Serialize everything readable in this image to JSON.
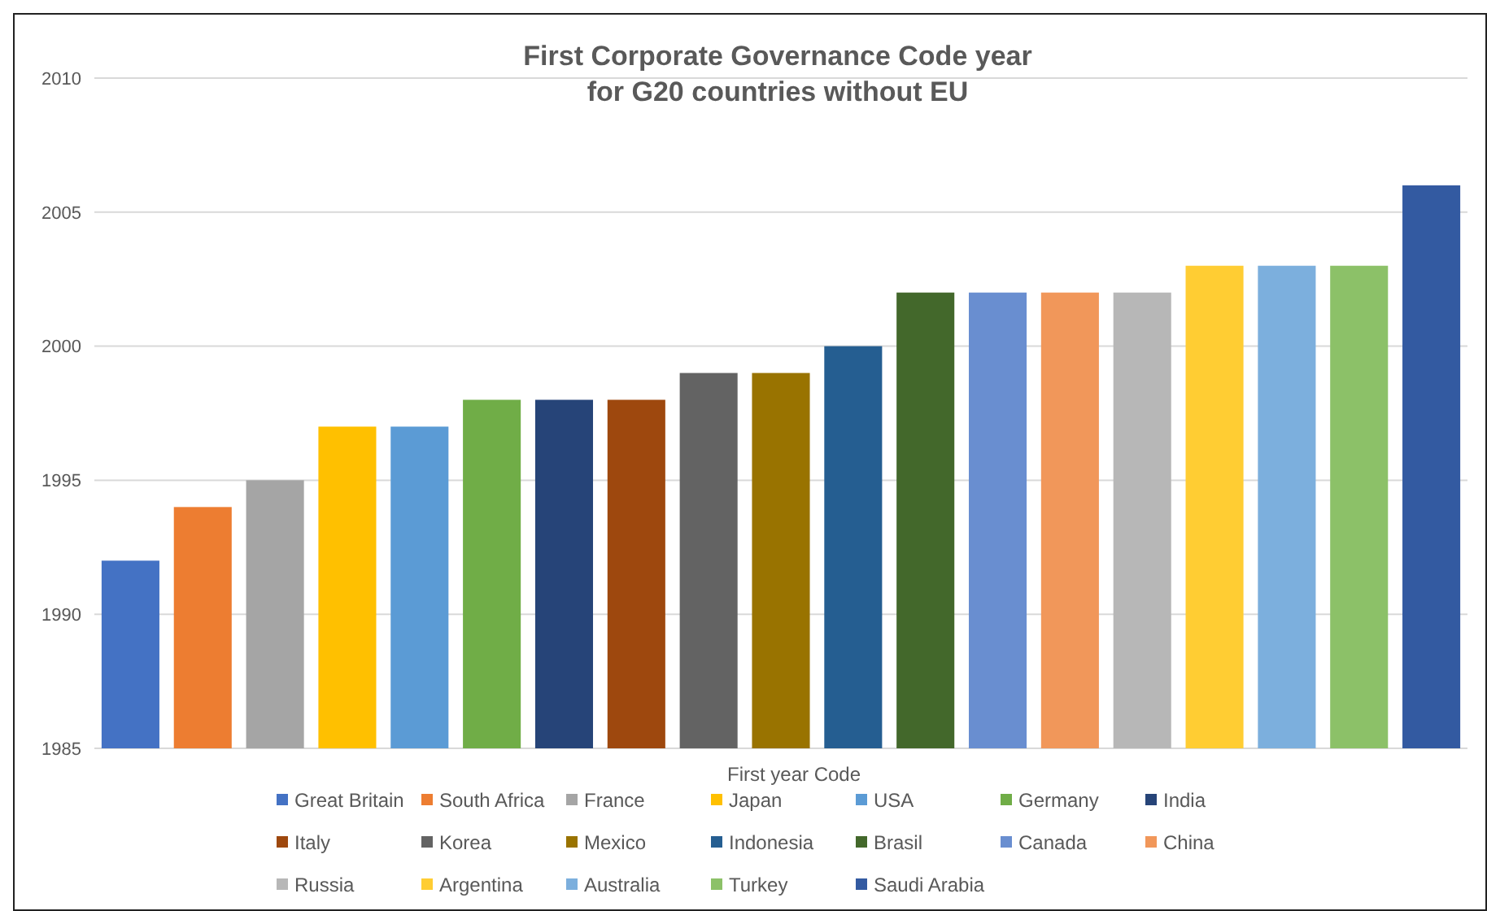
{
  "chart_data": {
    "type": "bar",
    "title": "First Corporate Governance Code year\nfor G20 countries without EU",
    "legend_title": "First year Code",
    "categories": [
      null,
      null,
      null,
      null,
      null,
      null,
      null,
      null,
      null,
      null,
      null,
      null,
      null,
      null,
      null,
      null,
      null,
      null,
      null
    ],
    "ylim": [
      1985,
      2010
    ],
    "yticks": [
      1985,
      1990,
      1995,
      2000,
      2005,
      2010
    ],
    "grid": "y",
    "legend": "bottom",
    "tick_labels": "y",
    "series": [
      {
        "name": "Great Britain",
        "color": "#4472c4",
        "values": [
          1992,
          null,
          null,
          null,
          null,
          null,
          null,
          null,
          null,
          null,
          null,
          null,
          null,
          null,
          null,
          null,
          null,
          null,
          null
        ]
      },
      {
        "name": "South Africa",
        "color": "#ed7d31",
        "values": [
          null,
          1994,
          null,
          null,
          null,
          null,
          null,
          null,
          null,
          null,
          null,
          null,
          null,
          null,
          null,
          null,
          null,
          null,
          null
        ]
      },
      {
        "name": "France",
        "color": "#a5a5a5",
        "values": [
          null,
          null,
          1995,
          null,
          null,
          null,
          null,
          null,
          null,
          null,
          null,
          null,
          null,
          null,
          null,
          null,
          null,
          null,
          null
        ]
      },
      {
        "name": "Japan",
        "color": "#ffc000",
        "values": [
          null,
          null,
          null,
          1997,
          null,
          null,
          null,
          null,
          null,
          null,
          null,
          null,
          null,
          null,
          null,
          null,
          null,
          null,
          null
        ]
      },
      {
        "name": "USA",
        "color": "#5b9bd5",
        "values": [
          null,
          null,
          null,
          null,
          1997,
          null,
          null,
          null,
          null,
          null,
          null,
          null,
          null,
          null,
          null,
          null,
          null,
          null,
          null
        ]
      },
      {
        "name": "Germany",
        "color": "#70ad47",
        "values": [
          null,
          null,
          null,
          null,
          null,
          1998,
          null,
          null,
          null,
          null,
          null,
          null,
          null,
          null,
          null,
          null,
          null,
          null,
          null
        ]
      },
      {
        "name": "India",
        "color": "#264478",
        "values": [
          null,
          null,
          null,
          null,
          null,
          null,
          1998,
          null,
          null,
          null,
          null,
          null,
          null,
          null,
          null,
          null,
          null,
          null,
          null
        ]
      },
      {
        "name": "Italy",
        "color": "#9e480e",
        "values": [
          null,
          null,
          null,
          null,
          null,
          null,
          null,
          1998,
          null,
          null,
          null,
          null,
          null,
          null,
          null,
          null,
          null,
          null,
          null
        ]
      },
      {
        "name": "Korea",
        "color": "#636363",
        "values": [
          null,
          null,
          null,
          null,
          null,
          null,
          null,
          null,
          1999,
          null,
          null,
          null,
          null,
          null,
          null,
          null,
          null,
          null,
          null
        ]
      },
      {
        "name": "Mexico",
        "color": "#997300",
        "values": [
          null,
          null,
          null,
          null,
          null,
          null,
          null,
          null,
          null,
          1999,
          null,
          null,
          null,
          null,
          null,
          null,
          null,
          null,
          null
        ]
      },
      {
        "name": "Indonesia",
        "color": "#255e91",
        "values": [
          null,
          null,
          null,
          null,
          null,
          null,
          null,
          null,
          null,
          null,
          2000,
          null,
          null,
          null,
          null,
          null,
          null,
          null,
          null
        ]
      },
      {
        "name": "Brasil",
        "color": "#43682b",
        "values": [
          null,
          null,
          null,
          null,
          null,
          null,
          null,
          null,
          null,
          null,
          null,
          2002,
          null,
          null,
          null,
          null,
          null,
          null,
          null
        ]
      },
      {
        "name": "Canada",
        "color": "#698ed0",
        "values": [
          null,
          null,
          null,
          null,
          null,
          null,
          null,
          null,
          null,
          null,
          null,
          null,
          2002,
          null,
          null,
          null,
          null,
          null,
          null
        ]
      },
      {
        "name": "China",
        "color": "#f1975a",
        "values": [
          null,
          null,
          null,
          null,
          null,
          null,
          null,
          null,
          null,
          null,
          null,
          null,
          null,
          2002,
          null,
          null,
          null,
          null,
          null
        ]
      },
      {
        "name": "Russia",
        "color": "#b7b7b7",
        "values": [
          null,
          null,
          null,
          null,
          null,
          null,
          null,
          null,
          null,
          null,
          null,
          null,
          null,
          null,
          2002,
          null,
          null,
          null,
          null
        ]
      },
      {
        "name": "Argentina",
        "color": "#ffcd33",
        "values": [
          null,
          null,
          null,
          null,
          null,
          null,
          null,
          null,
          null,
          null,
          null,
          null,
          null,
          null,
          null,
          2003,
          null,
          null,
          null
        ]
      },
      {
        "name": "Australia",
        "color": "#7cafdd",
        "values": [
          null,
          null,
          null,
          null,
          null,
          null,
          null,
          null,
          null,
          null,
          null,
          null,
          null,
          null,
          null,
          null,
          2003,
          null,
          null
        ]
      },
      {
        "name": "Turkey",
        "color": "#8cc168",
        "values": [
          null,
          null,
          null,
          null,
          null,
          null,
          null,
          null,
          null,
          null,
          null,
          null,
          null,
          null,
          null,
          null,
          null,
          2003,
          null
        ]
      },
      {
        "name": "Saudi Arabia",
        "color": "#335aa1",
        "values": [
          null,
          null,
          null,
          null,
          null,
          null,
          null,
          null,
          null,
          null,
          null,
          null,
          null,
          null,
          null,
          null,
          null,
          null,
          2006
        ]
      }
    ]
  }
}
